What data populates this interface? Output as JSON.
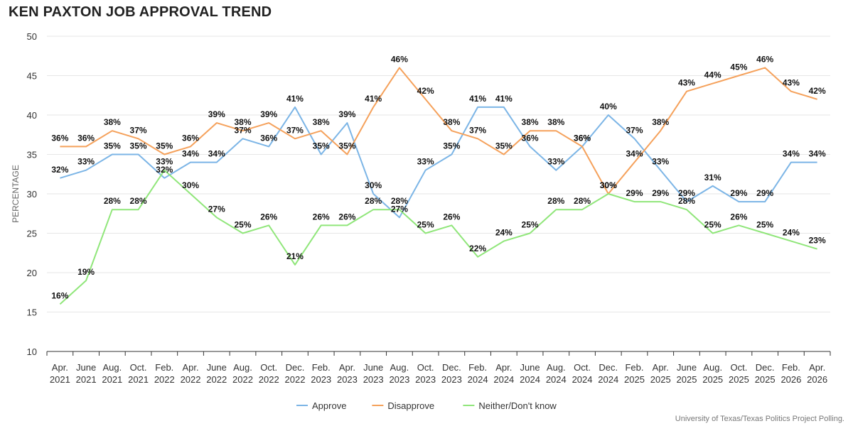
{
  "chart_data": {
    "type": "line",
    "title": "KEN PAXTON JOB APPROVAL TREND",
    "ylabel": "PERCENTAGE",
    "xlabel": "",
    "ylim": [
      10,
      50
    ],
    "yticks": [
      10,
      15,
      20,
      25,
      30,
      35,
      40,
      45,
      50
    ],
    "grid": true,
    "legend_position": "bottom-center",
    "categories": [
      [
        "Apr.",
        "2021"
      ],
      [
        "June",
        "2021"
      ],
      [
        "Aug.",
        "2021"
      ],
      [
        "Oct.",
        "2021"
      ],
      [
        "Feb.",
        "2022"
      ],
      [
        "Apr.",
        "2022"
      ],
      [
        "June",
        "2022"
      ],
      [
        "Aug.",
        "2022"
      ],
      [
        "Oct.",
        "2022"
      ],
      [
        "Dec.",
        "2022"
      ],
      [
        "Feb.",
        "2023"
      ],
      [
        "Apr.",
        "2023"
      ],
      [
        "June",
        "2023"
      ],
      [
        "Aug.",
        "2023"
      ],
      [
        "Oct.",
        "2023"
      ],
      [
        "Dec.",
        "2023"
      ],
      [
        "Feb.",
        "2024"
      ],
      [
        "Apr.",
        "2024"
      ],
      [
        "June",
        "2024"
      ],
      [
        "Aug.",
        "2024"
      ],
      [
        "Oct.",
        "2024"
      ],
      [
        "Dec.",
        "2024"
      ],
      [
        "Feb.",
        "2025"
      ],
      [
        "Apr.",
        "2025"
      ],
      [
        "June",
        "2025"
      ],
      [
        "Aug.",
        "2025"
      ],
      [
        "Oct.",
        "2025"
      ],
      [
        "Dec.",
        "2025"
      ],
      [
        "Feb.",
        "2026"
      ],
      [
        "Apr.",
        "2026"
      ]
    ],
    "series": [
      {
        "name": "Approve",
        "color": "#7cb5e6",
        "values": [
          32,
          33,
          35,
          35,
          32,
          34,
          34,
          37,
          36,
          41,
          35,
          39,
          30,
          27,
          33,
          35,
          41,
          41,
          36,
          33,
          36,
          40,
          37,
          33,
          29,
          31,
          29,
          29,
          34,
          34
        ]
      },
      {
        "name": "Disapprove",
        "color": "#f5a15b",
        "values": [
          36,
          36,
          38,
          37,
          35,
          36,
          39,
          38,
          39,
          37,
          38,
          35,
          41,
          46,
          42,
          38,
          37,
          35,
          38,
          38,
          36,
          30,
          34,
          38,
          43,
          44,
          45,
          46,
          43,
          42
        ]
      },
      {
        "name": "Neither/Don't know",
        "color": "#90e67a",
        "values": [
          16,
          19,
          28,
          28,
          33,
          30,
          27,
          25,
          26,
          21,
          26,
          26,
          28,
          28,
          25,
          26,
          22,
          24,
          25,
          28,
          28,
          30,
          29,
          29,
          28,
          25,
          26,
          25,
          24,
          23
        ]
      }
    ]
  },
  "source": "University of Texas/Texas Politics Project Polling."
}
